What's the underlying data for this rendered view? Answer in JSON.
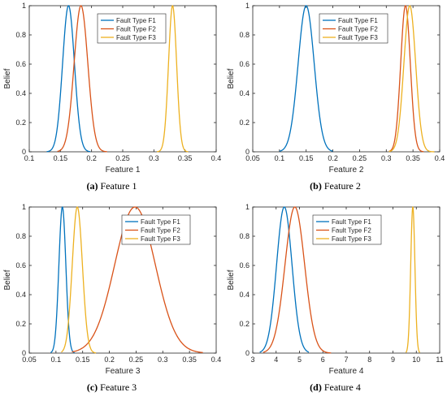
{
  "colors": {
    "F1": "#0072BD",
    "F2": "#D95319",
    "F3": "#EDB120",
    "axis": "#262626"
  },
  "captions": [
    {
      "tag": "(a)",
      "text": " Feature 1"
    },
    {
      "tag": "(b)",
      "text": " Feature 2"
    },
    {
      "tag": "(c)",
      "text": " Feature 3"
    },
    {
      "tag": "(d)",
      "text": " Feature 4"
    }
  ],
  "chart_data": [
    {
      "type": "line",
      "xlabel": "Feature 1",
      "ylabel": "Belief",
      "xlim": [
        0.1,
        0.4
      ],
      "ylim": [
        0,
        1
      ],
      "xticks": [
        0.1,
        0.15,
        0.2,
        0.25,
        0.3,
        0.35,
        0.4
      ],
      "xtick_labels": [
        "0.1",
        "0.15",
        "0.2",
        "0.25",
        "0.3",
        "0.35",
        "0.4"
      ],
      "yticks": [
        0,
        0.2,
        0.4,
        0.6,
        0.8,
        1
      ],
      "ytick_labels": [
        "0",
        "0.2",
        "0.4",
        "0.6",
        "0.8",
        "1"
      ],
      "legend": "top-right",
      "series": [
        {
          "name": "Fault Type F1",
          "peak_x": 0.163,
          "sigma": 0.0095,
          "x_range": [
            0.128,
            0.198
          ]
        },
        {
          "name": "Fault Type F2",
          "peak_x": 0.183,
          "sigma": 0.011,
          "x_range": [
            0.145,
            0.225
          ]
        },
        {
          "name": "Fault Type F3",
          "peak_x": 0.33,
          "sigma": 0.0065,
          "x_range": [
            0.305,
            0.355
          ]
        }
      ]
    },
    {
      "type": "line",
      "xlabel": "Feature 2",
      "ylabel": "Belief",
      "xlim": [
        0.05,
        0.4
      ],
      "ylim": [
        0,
        1
      ],
      "xticks": [
        0.05,
        0.1,
        0.15,
        0.2,
        0.25,
        0.3,
        0.35,
        0.4
      ],
      "xtick_labels": [
        "0.05",
        "0.1",
        "0.15",
        "0.2",
        "0.25",
        "0.3",
        "0.35",
        "0.4"
      ],
      "yticks": [
        0,
        0.2,
        0.4,
        0.6,
        0.8,
        1
      ],
      "ytick_labels": [
        "0",
        "0.2",
        "0.4",
        "0.6",
        "0.8",
        "1"
      ],
      "legend": "top-right",
      "series": [
        {
          "name": "Fault Type F1",
          "peak_x": 0.15,
          "sigma": 0.015,
          "x_range": [
            0.1,
            0.2
          ]
        },
        {
          "name": "Fault Type F2",
          "peak_x": 0.336,
          "sigma": 0.009,
          "x_range": [
            0.305,
            0.37
          ]
        },
        {
          "name": "Fault Type F3",
          "peak_x": 0.344,
          "sigma": 0.011,
          "x_range": [
            0.305,
            0.39
          ]
        }
      ]
    },
    {
      "type": "line",
      "xlabel": "Feature 3",
      "ylabel": "Belief",
      "xlim": [
        0.05,
        0.4
      ],
      "ylim": [
        0,
        1
      ],
      "xticks": [
        0.05,
        0.1,
        0.15,
        0.2,
        0.25,
        0.3,
        0.35,
        0.4
      ],
      "xtick_labels": [
        "0.05",
        "0.1",
        "0.15",
        "0.2",
        "0.25",
        "0.3",
        "0.35",
        "0.4"
      ],
      "yticks": [
        0,
        0.2,
        0.4,
        0.6,
        0.8,
        1
      ],
      "ytick_labels": [
        "0",
        "0.2",
        "0.4",
        "0.6",
        "0.8",
        "1"
      ],
      "legend": "top-right",
      "series": [
        {
          "name": "Fault Type F1",
          "peak_x": 0.112,
          "sigma": 0.0065,
          "x_range": [
            0.09,
            0.135
          ]
        },
        {
          "name": "Fault Type F2",
          "peak_x": 0.248,
          "sigma": 0.038,
          "x_range": [
            0.13,
            0.375
          ]
        },
        {
          "name": "Fault Type F3",
          "peak_x": 0.14,
          "sigma": 0.0095,
          "x_range": [
            0.11,
            0.175
          ]
        }
      ]
    },
    {
      "type": "line",
      "xlabel": "Feature 4",
      "ylabel": "Belief",
      "xlim": [
        3,
        11
      ],
      "ylim": [
        0,
        1
      ],
      "xticks": [
        3,
        4,
        5,
        6,
        7,
        8,
        9,
        10,
        11
      ],
      "xtick_labels": [
        "3",
        "4",
        "5",
        "6",
        "7",
        "8",
        "9",
        "10",
        "11"
      ],
      "yticks": [
        0,
        0.2,
        0.4,
        0.6,
        0.8,
        1
      ],
      "ytick_labels": [
        "0",
        "0.2",
        "0.4",
        "0.6",
        "0.8",
        "1"
      ],
      "legend": "top-right",
      "series": [
        {
          "name": "Fault Type F1",
          "peak_x": 4.35,
          "sigma": 0.33,
          "x_range": [
            3.3,
            5.4
          ]
        },
        {
          "name": "Fault Type F2",
          "peak_x": 4.8,
          "sigma": 0.42,
          "x_range": [
            3.45,
            6.35
          ]
        },
        {
          "name": "Fault Type F3",
          "peak_x": 9.85,
          "sigma": 0.09,
          "x_range": [
            9.55,
            10.15
          ]
        }
      ]
    }
  ]
}
